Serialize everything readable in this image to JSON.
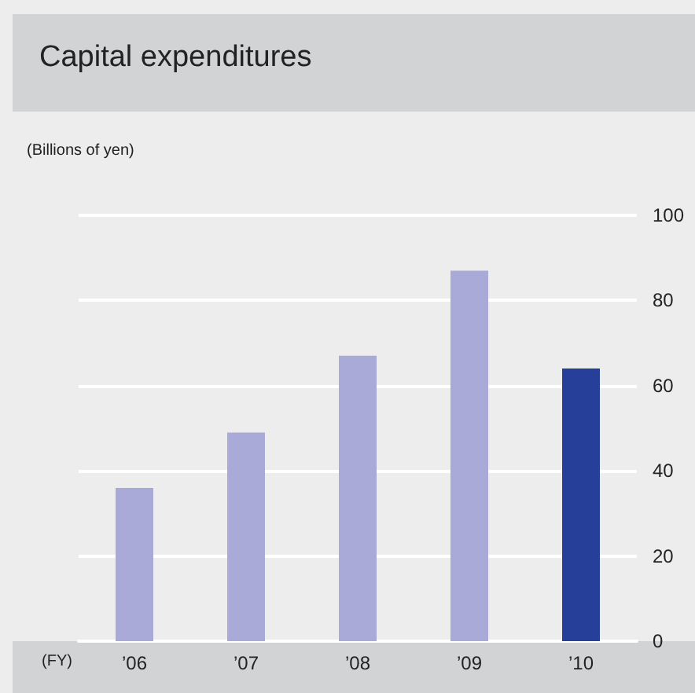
{
  "chart_data": {
    "type": "bar",
    "title": "Capital expenditures",
    "ylabel": "(Billions of yen)",
    "xlabel": "(FY)",
    "categories": [
      "’06",
      "’07",
      "’08",
      "’09",
      "’10"
    ],
    "values": [
      36,
      49,
      67,
      87,
      64
    ],
    "colors": [
      "#aaaad8",
      "#aaaad8",
      "#aaaad8",
      "#aaaad8",
      "#26409a"
    ],
    "ylim": [
      0,
      100
    ],
    "yticks": [
      0,
      20,
      40,
      60,
      80,
      100
    ],
    "grid": "y"
  }
}
